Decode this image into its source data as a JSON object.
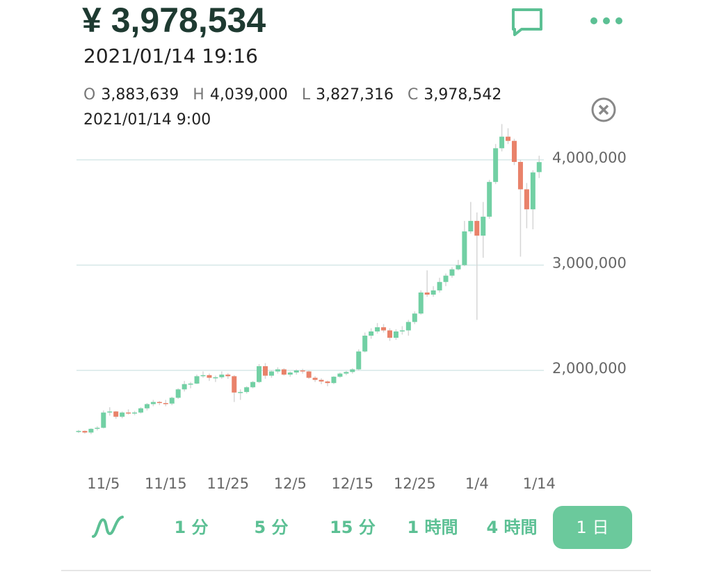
{
  "header": {
    "price": "¥ 3,978,534",
    "datetime": "2021/01/14 19:16"
  },
  "selected": {
    "items": [
      {
        "key": "O",
        "value": "3,883,639"
      },
      {
        "key": "H",
        "value": "4,039,000"
      },
      {
        "key": "L",
        "value": "3,827,316"
      },
      {
        "key": "C",
        "value": "3,978,542"
      }
    ],
    "date": "2021/01/14 9:00"
  },
  "chart_data": {
    "type": "candlestick",
    "up_color": "#72d0a4",
    "down_color": "#e9826a",
    "grid": true,
    "categories": [
      null,
      null,
      null,
      null,
      "11/5",
      null,
      null,
      null,
      null,
      null,
      null,
      null,
      null,
      null,
      "11/15",
      null,
      null,
      null,
      null,
      null,
      null,
      null,
      null,
      null,
      "11/25",
      null,
      null,
      null,
      null,
      null,
      null,
      null,
      null,
      null,
      "12/5",
      null,
      null,
      null,
      null,
      null,
      null,
      null,
      null,
      null,
      "12/15",
      null,
      null,
      null,
      null,
      null,
      null,
      null,
      null,
      null,
      "12/25",
      null,
      null,
      null,
      null,
      null,
      null,
      null,
      null,
      null,
      "1/4",
      null,
      null,
      null,
      null,
      null,
      null,
      null,
      null,
      null,
      "1/14"
    ],
    "open": [
      1420000,
      1425000,
      1410000,
      1445000,
      1455000,
      1600000,
      1610000,
      1560000,
      1600000,
      1590000,
      1600000,
      1640000,
      1680000,
      1700000,
      1690000,
      1685000,
      1740000,
      1820000,
      1870000,
      1875000,
      1945000,
      1955000,
      1930000,
      1935000,
      1960000,
      1945000,
      1790000,
      1795000,
      1840000,
      1890000,
      2040000,
      1950000,
      1990000,
      2010000,
      1960000,
      1980000,
      2000000,
      1990000,
      1930000,
      1910000,
      1895000,
      1880000,
      1940000,
      1970000,
      1985000,
      2010000,
      2180000,
      2330000,
      2370000,
      2410000,
      2380000,
      2310000,
      2370000,
      2380000,
      2460000,
      2540000,
      2740000,
      2720000,
      2760000,
      2840000,
      2900000,
      2960000,
      3000000,
      3320000,
      3420000,
      3280000,
      3460000,
      3790000,
      4110000,
      4220000,
      4180000,
      3980000,
      3720000,
      3530000,
      3883639
    ],
    "high": [
      1435000,
      1430000,
      1450000,
      1470000,
      1620000,
      1650000,
      1615000,
      1610000,
      1630000,
      1615000,
      1650000,
      1690000,
      1720000,
      1710000,
      1720000,
      1750000,
      1830000,
      1900000,
      1890000,
      1960000,
      1990000,
      1970000,
      1950000,
      1990000,
      1975000,
      1955000,
      1820000,
      1850000,
      1900000,
      2060000,
      2070000,
      2000000,
      2030000,
      2020000,
      1990000,
      2010000,
      2015000,
      2000000,
      1945000,
      1925000,
      1905000,
      1945000,
      1980000,
      1995000,
      2020000,
      2200000,
      2360000,
      2400000,
      2450000,
      2440000,
      2400000,
      2390000,
      2420000,
      2480000,
      2560000,
      2760000,
      2950000,
      2800000,
      2880000,
      2920000,
      2980000,
      3050000,
      3420000,
      3600000,
      3500000,
      3600000,
      3810000,
      4150000,
      4340000,
      4300000,
      4200000,
      4000000,
      3780000,
      3900000,
      4039000
    ],
    "low": [
      1405000,
      1400000,
      1395000,
      1430000,
      1450000,
      1570000,
      1540000,
      1545000,
      1580000,
      1575000,
      1590000,
      1620000,
      1660000,
      1670000,
      1660000,
      1670000,
      1730000,
      1800000,
      1830000,
      1870000,
      1930000,
      1900000,
      1890000,
      1920000,
      1920000,
      1700000,
      1720000,
      1780000,
      1830000,
      1880000,
      1920000,
      1930000,
      1970000,
      1950000,
      1940000,
      1960000,
      1970000,
      1920000,
      1890000,
      1870000,
      1850000,
      1870000,
      1930000,
      1955000,
      1970000,
      2000000,
      2170000,
      2300000,
      2350000,
      2360000,
      2280000,
      2290000,
      2340000,
      2330000,
      2440000,
      2530000,
      2700000,
      2700000,
      2740000,
      2800000,
      2880000,
      2950000,
      2990000,
      3300000,
      2480000,
      3070000,
      3440000,
      3770000,
      4080000,
      4150000,
      3950000,
      3080000,
      3350000,
      3340000,
      3827316
    ],
    "close": [
      1425000,
      1410000,
      1445000,
      1455000,
      1600000,
      1610000,
      1560000,
      1600000,
      1590000,
      1600000,
      1640000,
      1680000,
      1700000,
      1690000,
      1685000,
      1740000,
      1820000,
      1870000,
      1875000,
      1945000,
      1955000,
      1930000,
      1935000,
      1960000,
      1945000,
      1790000,
      1795000,
      1840000,
      1890000,
      2040000,
      1950000,
      1990000,
      2010000,
      1960000,
      1980000,
      2000000,
      1990000,
      1930000,
      1910000,
      1895000,
      1880000,
      1940000,
      1970000,
      1985000,
      2010000,
      2180000,
      2330000,
      2370000,
      2410000,
      2380000,
      2310000,
      2370000,
      2380000,
      2460000,
      2540000,
      2740000,
      2720000,
      2760000,
      2840000,
      2900000,
      2960000,
      3000000,
      3320000,
      3420000,
      3280000,
      3460000,
      3790000,
      4110000,
      4220000,
      4180000,
      3980000,
      3720000,
      3530000,
      3880000,
      3978542
    ],
    "ylim": [
      1162000,
      4363000
    ],
    "yticks": [
      {
        "value": 2000000,
        "label": "2,000,000"
      },
      {
        "value": 3000000,
        "label": "3,000,000"
      },
      {
        "value": 4000000,
        "label": "4,000,000"
      }
    ]
  },
  "tabs": [
    "1 分",
    "5 分",
    "15 分",
    "1 時間",
    "4 時間",
    "1 日"
  ],
  "active_tab": 5
}
